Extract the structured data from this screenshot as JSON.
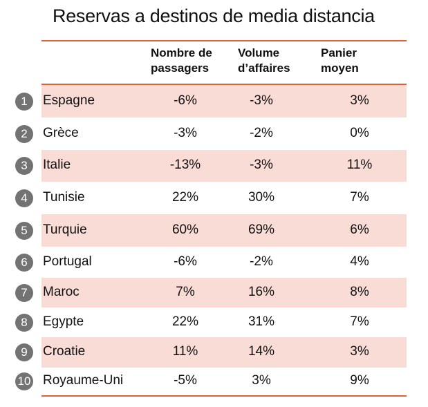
{
  "title": "Reservas a destinos de media distancia",
  "headers": [
    "Nombre de passagers",
    "Volume d’affaires",
    "Panier moyen"
  ],
  "header_lines": [
    [
      "Nombre de",
      "passagers"
    ],
    [
      "Volume",
      "d’affaires"
    ],
    [
      "Panier",
      "moyen"
    ]
  ],
  "colors": {
    "accent": "#e0603a",
    "band": "#f9dcd6",
    "badge": "#737373"
  },
  "rows": [
    {
      "rank": "1",
      "country": "Espagne",
      "passagers": "-6%",
      "volume": "-3%",
      "panier": "3%"
    },
    {
      "rank": "2",
      "country": "Grèce",
      "passagers": "-3%",
      "volume": "-2%",
      "panier": "0%"
    },
    {
      "rank": "3",
      "country": "Italie",
      "passagers": "-13%",
      "volume": "-3%",
      "panier": "11%"
    },
    {
      "rank": "4",
      "country": "Tunisie",
      "passagers": "22%",
      "volume": "30%",
      "panier": "7%"
    },
    {
      "rank": "5",
      "country": "Turquie",
      "passagers": "60%",
      "volume": "69%",
      "panier": "6%"
    },
    {
      "rank": "6",
      "country": "Portugal",
      "passagers": "-6%",
      "volume": "-2%",
      "panier": "4%"
    },
    {
      "rank": "7",
      "country": "Maroc",
      "passagers": "7%",
      "volume": "16%",
      "panier": "8%"
    },
    {
      "rank": "8",
      "country": "Egypte",
      "passagers": "22%",
      "volume": "31%",
      "panier": "7%"
    },
    {
      "rank": "9",
      "country": "Croatie",
      "passagers": "11%",
      "volume": "14%",
      "panier": "3%"
    },
    {
      "rank": "10",
      "country": "Royaume-Uni",
      "passagers": "-5%",
      "volume": "3%",
      "panier": "9%"
    }
  ]
}
